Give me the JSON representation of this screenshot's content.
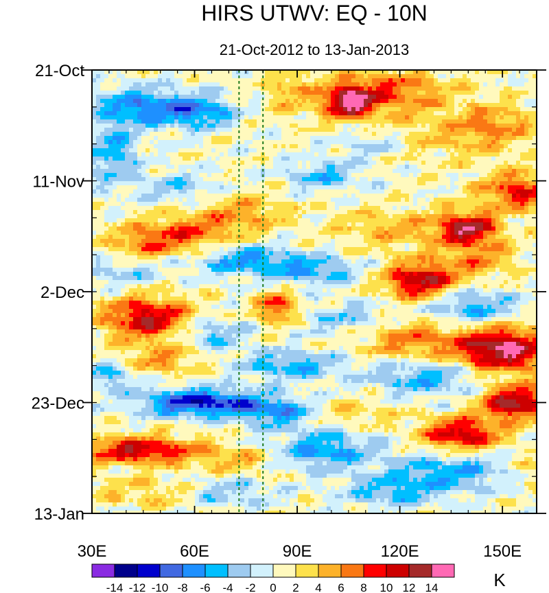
{
  "chart_data": {
    "type": "heatmap",
    "title": "HIRS UTWV: EQ - 10N",
    "subtitle": "21-Oct-2012 to 13-Jan-2013",
    "x_range": [
      30,
      160
    ],
    "x_ticks": [
      30,
      60,
      90,
      120,
      150
    ],
    "x_tick_labels": [
      "30E",
      "60E",
      "90E",
      "120E",
      "150E"
    ],
    "x_minor_tick_step": 5,
    "y_range_days": [
      0,
      84
    ],
    "y_ticks_days": [
      0,
      21,
      42,
      63,
      84
    ],
    "y_tick_labels": [
      "21-Oct",
      "11-Nov",
      "2-Dec",
      "23-Dec",
      "13-Jan"
    ],
    "y_minor_tick_step_days": 7,
    "reference_lines_lon": [
      73,
      80
    ],
    "colorbar": {
      "unit": "K",
      "labels": [
        "-14",
        "-12",
        "-10",
        "-8",
        "-6",
        "-4",
        "-2",
        "0",
        "2",
        "4",
        "6",
        "8",
        "10",
        "12",
        "14"
      ],
      "colors": [
        "#8a2be2",
        "#00008b",
        "#0000cd",
        "#4169e1",
        "#1e90ff",
        "#00bfff",
        "#9ecbf0",
        "#d2f1fc",
        "#fff9bd",
        "#fde14c",
        "#fdb22a",
        "#fa7814",
        "#ff0000",
        "#cd0000",
        "#a52a2a",
        "#ff69b4"
      ]
    },
    "features": [
      {
        "lon": 105,
        "day": 6,
        "value": 13,
        "sx": 5,
        "sy": 2.2
      },
      {
        "lon": 118,
        "day": 4,
        "value": 7,
        "sx": 12,
        "sy": 3
      },
      {
        "lon": 88,
        "day": 4,
        "value": 4,
        "sx": 5,
        "sy": 3
      },
      {
        "lon": 45,
        "day": 7,
        "value": -8,
        "sx": 10,
        "sy": 2.5
      },
      {
        "lon": 62,
        "day": 8,
        "value": -7,
        "sx": 7,
        "sy": 2
      },
      {
        "lon": 36,
        "day": 16,
        "value": -6,
        "sx": 5,
        "sy": 4
      },
      {
        "lon": 132,
        "day": 13,
        "value": 3,
        "sx": 18,
        "sy": 3
      },
      {
        "lon": 98,
        "day": 20,
        "value": -5,
        "sx": 8,
        "sy": 2
      },
      {
        "lon": 155,
        "day": 23,
        "value": 9,
        "sx": 8,
        "sy": 2.5
      },
      {
        "lon": 140,
        "day": 30,
        "value": 12,
        "sx": 6,
        "sy": 2.2
      },
      {
        "lon": 118,
        "day": 30,
        "value": 4,
        "sx": 12,
        "sy": 2.5
      },
      {
        "lon": 75,
        "day": 27,
        "value": 5,
        "sx": 8,
        "sy": 2.5
      },
      {
        "lon": 58,
        "day": 31,
        "value": 7,
        "sx": 9,
        "sy": 2.5
      },
      {
        "lon": 44,
        "day": 33,
        "value": 5,
        "sx": 7,
        "sy": 2.5
      },
      {
        "lon": 75,
        "day": 36,
        "value": -7,
        "sx": 10,
        "sy": 2
      },
      {
        "lon": 95,
        "day": 38,
        "value": -6,
        "sx": 8,
        "sy": 2
      },
      {
        "lon": 40,
        "day": 38,
        "value": -4,
        "sx": 8,
        "sy": 2
      },
      {
        "lon": 126,
        "day": 40,
        "value": 12,
        "sx": 7,
        "sy": 2.5
      },
      {
        "lon": 143,
        "day": 36,
        "value": 5,
        "sx": 8,
        "sy": 2.5
      },
      {
        "lon": 140,
        "day": 45,
        "value": -6,
        "sx": 10,
        "sy": 2.5
      },
      {
        "lon": 46,
        "day": 47,
        "value": 11,
        "sx": 9,
        "sy": 2.8
      },
      {
        "lon": 84,
        "day": 45,
        "value": 9,
        "sx": 4,
        "sy": 2
      },
      {
        "lon": 65,
        "day": 50,
        "value": -5,
        "sx": 7,
        "sy": 2
      },
      {
        "lon": 105,
        "day": 47,
        "value": -4,
        "sx": 10,
        "sy": 2
      },
      {
        "lon": 150,
        "day": 53,
        "value": 14,
        "sx": 10,
        "sy": 3
      },
      {
        "lon": 123,
        "day": 51,
        "value": 6,
        "sx": 10,
        "sy": 3
      },
      {
        "lon": 128,
        "day": 58,
        "value": -6,
        "sx": 12,
        "sy": 2.5
      },
      {
        "lon": 88,
        "day": 56,
        "value": -6,
        "sx": 10,
        "sy": 2
      },
      {
        "lon": 50,
        "day": 55,
        "value": 5,
        "sx": 8,
        "sy": 2
      },
      {
        "lon": 62,
        "day": 63,
        "value": -12,
        "sx": 12,
        "sy": 1.8
      },
      {
        "lon": 85,
        "day": 65,
        "value": -7,
        "sx": 8,
        "sy": 2
      },
      {
        "lon": 105,
        "day": 65,
        "value": 3,
        "sx": 10,
        "sy": 2
      },
      {
        "lon": 154,
        "day": 63,
        "value": 13,
        "sx": 7,
        "sy": 2.2
      },
      {
        "lon": 138,
        "day": 69,
        "value": 11,
        "sx": 8,
        "sy": 2.2
      },
      {
        "lon": 44,
        "day": 72,
        "value": 11,
        "sx": 12,
        "sy": 1.8
      },
      {
        "lon": 72,
        "day": 74,
        "value": 4,
        "sx": 8,
        "sy": 2
      },
      {
        "lon": 98,
        "day": 72,
        "value": -7,
        "sx": 10,
        "sy": 2.5
      },
      {
        "lon": 135,
        "day": 76,
        "value": -6,
        "sx": 14,
        "sy": 2.5
      },
      {
        "lon": 45,
        "day": 80,
        "value": 3,
        "sx": 10,
        "sy": 2
      },
      {
        "lon": 118,
        "day": 80,
        "value": -5,
        "sx": 10,
        "sy": 2
      },
      {
        "lon": 70,
        "day": 80,
        "value": -4,
        "sx": 8,
        "sy": 2
      },
      {
        "lon": 158,
        "day": 76,
        "value": 3,
        "sx": 5,
        "sy": 2
      },
      {
        "lon": 35,
        "day": 58,
        "value": -5,
        "sx": 6,
        "sy": 2
      },
      {
        "lon": 55,
        "day": 22,
        "value": -4,
        "sx": 8,
        "sy": 2
      },
      {
        "lon": 112,
        "day": 14,
        "value": -4,
        "sx": 8,
        "sy": 2
      },
      {
        "lon": 147,
        "day": 10,
        "value": 5,
        "sx": 8,
        "sy": 2.5
      }
    ]
  }
}
